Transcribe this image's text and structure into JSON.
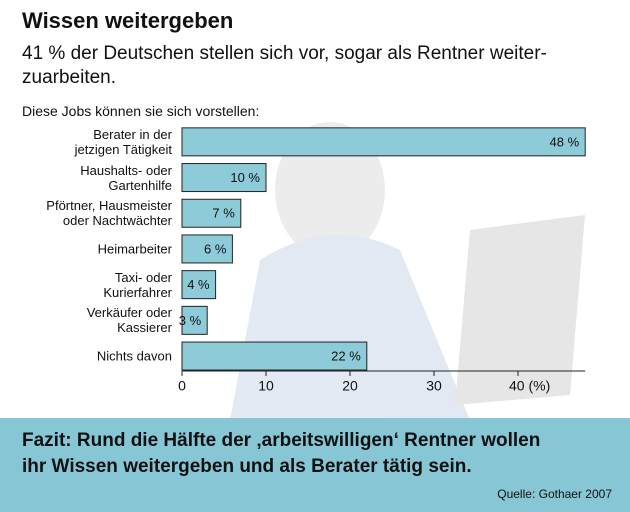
{
  "chart_data": {
    "type": "bar",
    "orientation": "horizontal",
    "title": "Wissen weitergeben",
    "subtitle": "41 % der Deutschen stellen sich vor, sogar als Rentner weiter-\nzuarbeiten.",
    "question": "Diese Jobs können sie sich vorstellen:",
    "categories": [
      "Berater in der\njetzigen Tätigkeit",
      "Haushalts- oder\nGartenhilfe",
      "Pförtner, Hausmeister\noder Nachtwächter",
      "Heimarbeiter",
      "Taxi- oder\nKurierfahrer",
      "Verkäufer oder\nKassierer",
      "Nichts davon"
    ],
    "values": [
      48,
      10,
      7,
      6,
      4,
      3,
      22
    ],
    "value_labels": [
      "48 %",
      "10 %",
      "7 %",
      "6 %",
      "4 %",
      "3 %",
      "22 %"
    ],
    "color": "#8ecbd8",
    "xlim": [
      0,
      48
    ],
    "xticks": [
      0,
      10,
      20,
      30,
      {
        "value": 40,
        "label": "40 (%)"
      }
    ],
    "conclusion": "Fazit: Rund die Hälfte der ‚arbeitswilligen‘ Rentner wollen\nihr Wissen weitergeben und als Berater tätig sein.",
    "source": "Quelle: Gothaer 2007"
  }
}
